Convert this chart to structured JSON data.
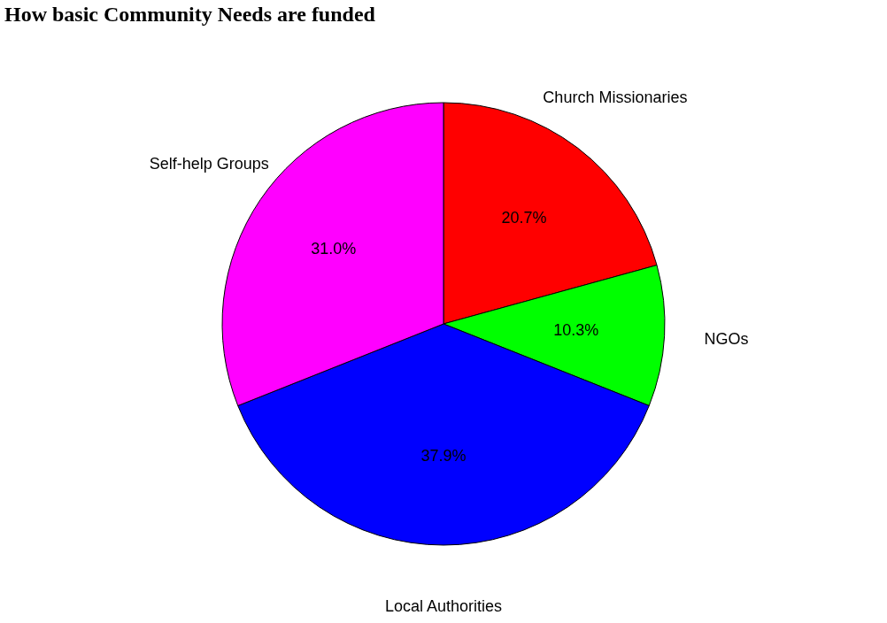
{
  "chart_data": {
    "type": "pie",
    "title": "How basic Community Needs are funded",
    "categories": [
      "Church Missionaries",
      "NGOs",
      "Local Authorities",
      "Self-help Groups"
    ],
    "values": [
      20.7,
      10.3,
      37.9,
      31.0
    ],
    "colors": [
      "#ff0000",
      "#00ff00",
      "#0000ff",
      "#ff00ff"
    ],
    "value_labels": [
      "20.7%",
      "10.3%",
      "37.9%",
      "31.0%"
    ],
    "legend": false
  }
}
